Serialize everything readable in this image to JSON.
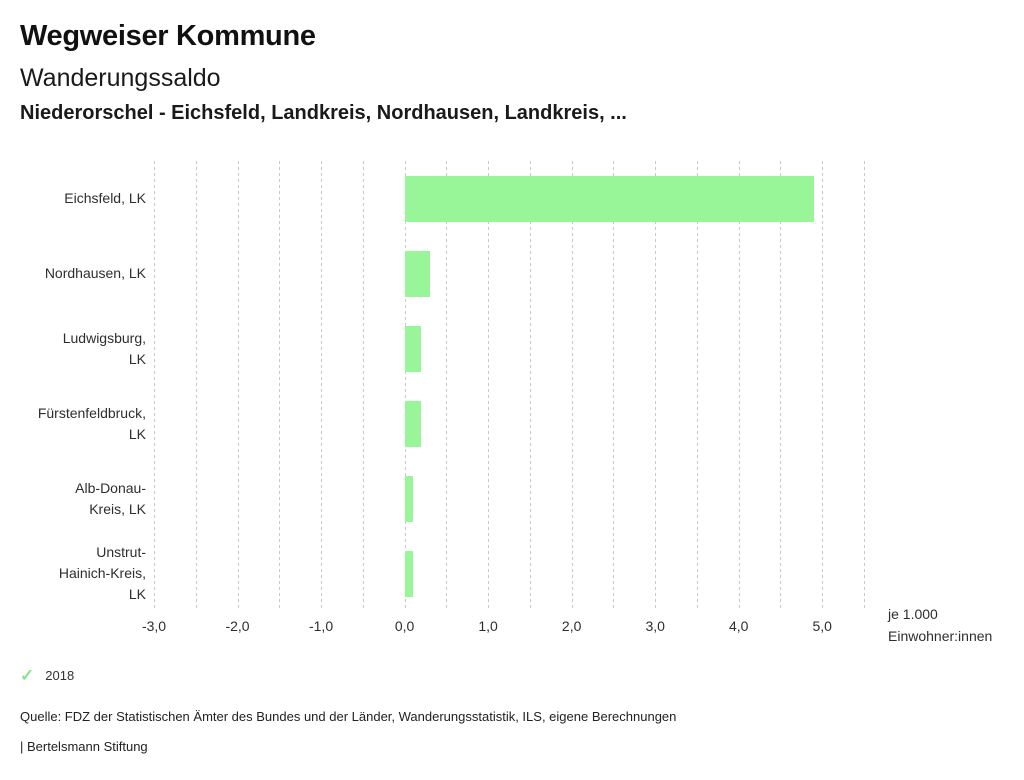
{
  "header": {
    "app_title": "Wegweiser Kommune",
    "chart_title": "Wanderungssaldo",
    "chart_subtitle": "Niederorschel - Eichsfeld, Landkreis, Nordhausen, Landkreis, ..."
  },
  "chart_data": {
    "type": "bar",
    "orientation": "horizontal",
    "title": "Wanderungssaldo",
    "subtitle": "Niederorschel - Eichsfeld, Landkreis, Nordhausen, Landkreis, ...",
    "categories": [
      "Eichsfeld, LK",
      "Nordhausen, LK",
      "Ludwigsburg, LK",
      "Fürstenfeldbruck, LK",
      "Alb-Donau-Kreis, LK",
      "Unstrut-Hainich-Kreis, LK"
    ],
    "category_label_lines": [
      [
        "Eichsfeld, LK"
      ],
      [
        "Nordhausen, LK"
      ],
      [
        "Ludwigsburg,",
        "LK"
      ],
      [
        "Fürstenfeldbruck,",
        "LK"
      ],
      [
        "Alb-Donau-",
        "Kreis, LK"
      ],
      [
        "Unstrut-",
        "Hainich-Kreis,",
        "LK"
      ]
    ],
    "series": [
      {
        "name": "2018",
        "values": [
          4.9,
          0.3,
          0.2,
          0.2,
          0.1,
          0.1
        ]
      }
    ],
    "xlabel": "je 1.000 Einwohner:innen",
    "unit_label": "je 1.000\nEinwohner:innen",
    "xlim": [
      -3.0,
      5.5
    ],
    "grid": true,
    "grid_step": 0.5,
    "tick_min": -3.0,
    "tick_step": 1.0,
    "tick_labels": [
      "-3,0",
      "-2,0",
      "-1,0",
      "0,0",
      "1,0",
      "2,0",
      "3,0",
      "4,0",
      "5,0"
    ],
    "legend_position": "bottom-left",
    "bar_color": "#98f598",
    "grid_color": "#c9c9c9"
  },
  "legend": {
    "check_icon": "✓",
    "check_color": "#8fe18f",
    "year": "2018"
  },
  "footer": {
    "source": "Quelle: FDZ der Statistischen Ämter des Bundes und der Länder, Wanderungsstatistik, ILS, eigene Berechnungen",
    "brand": "| Bertelsmann Stiftung"
  }
}
